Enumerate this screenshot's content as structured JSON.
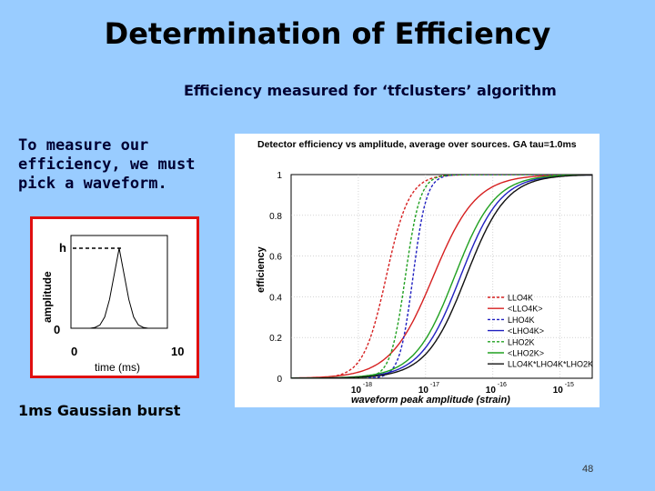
{
  "slide": {
    "title": "Determination of Efficiency",
    "subtitle": "Efficiency measured for ‘tfclusters’ algorithm",
    "intro_text": "To measure our efficiency, we must pick a waveform.",
    "burst_label": "1ms Gaussian burst",
    "page_number": "48"
  },
  "chart_data": [
    {
      "type": "line",
      "ylabel": "amplitude",
      "xlabel": "time (ms)",
      "xlim": [
        0,
        10
      ],
      "ylim": [
        0,
        1
      ],
      "x_tick_labels": [
        "0",
        "10"
      ],
      "y_tick_labels": [
        "0",
        "h"
      ],
      "series": [
        {
          "x": [
            0,
            1,
            2,
            2.5,
            3,
            3.5,
            4,
            4.5,
            5,
            5.5,
            6,
            6.5,
            7,
            7.5,
            8,
            9,
            10
          ],
          "y": [
            0,
            0,
            0,
            0.01,
            0.04,
            0.14,
            0.36,
            0.68,
            1.0,
            0.68,
            0.36,
            0.14,
            0.04,
            0.01,
            0,
            0,
            0
          ]
        }
      ],
      "annotations": [
        "h dashed reference line"
      ]
    },
    {
      "type": "line",
      "title": "Detector efficiency vs amplitude, average over sources. GA  tau=1.0ms",
      "xlabel": "waveform peak amplitude (strain)",
      "ylabel": "efficiency",
      "x_scale": "log",
      "xlim": [
        1e-19,
        3e-15
      ],
      "ylim": [
        0,
        1
      ],
      "grid": true,
      "legend_position": "bottom-right",
      "x_tick_labels": [
        {
          "base": "10",
          "exp": "-18",
          "value": 1e-18
        },
        {
          "base": "10",
          "exp": "-17",
          "value": 1e-17
        },
        {
          "base": "10",
          "exp": "-16",
          "value": 1e-16
        },
        {
          "base": "10",
          "exp": "-15",
          "value": 1e-15
        }
      ],
      "y_ticks": [
        0,
        0.2,
        0.4,
        0.6,
        0.8,
        1
      ],
      "y_tick_labels": [
        "0",
        "0.2",
        "0.4",
        "0.6",
        "0.8",
        "1"
      ],
      "series": [
        {
          "name": "LLO4K",
          "color": "#d62020",
          "style": "dashed",
          "x50": 2.6e-18,
          "width": 0.17
        },
        {
          "name": "<LLO4K>",
          "color": "#d62020",
          "style": "solid",
          "x50": 1.3e-17,
          "width": 0.32
        },
        {
          "name": "LHO4K",
          "color": "#2020c0",
          "style": "dashed",
          "x50": 6.5e-18,
          "width": 0.1
        },
        {
          "name": "<LHO4K>",
          "color": "#2020c0",
          "style": "solid",
          "x50": 3.3e-17,
          "width": 0.3
        },
        {
          "name": "LHO2K",
          "color": "#20a020",
          "style": "dashed",
          "x50": 5e-18,
          "width": 0.11
        },
        {
          "name": "<LHO2K>",
          "color": "#20a020",
          "style": "solid",
          "x50": 2.7e-17,
          "width": 0.3
        },
        {
          "name": "LLO4K*LHO4K*LHO2K",
          "color": "#111111",
          "style": "solid",
          "x50": 4e-17,
          "width": 0.3
        }
      ]
    }
  ]
}
